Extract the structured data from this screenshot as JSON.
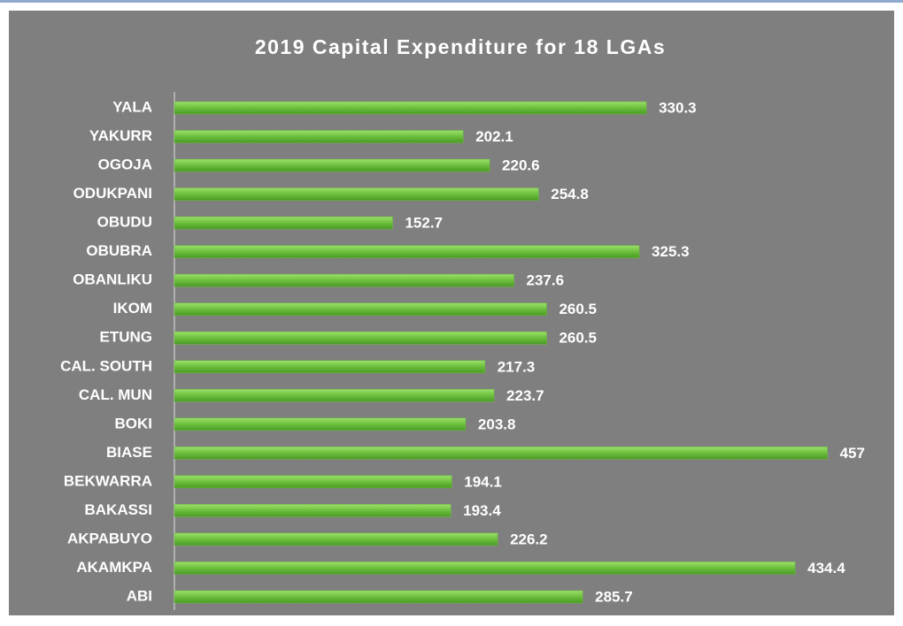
{
  "chart_data": {
    "type": "bar",
    "orientation": "horizontal",
    "title": "2019 Capital Expenditure for 18 LGAs",
    "categories": [
      "YALA",
      "YAKURR",
      "OGOJA",
      "ODUKPANI",
      "OBUDU",
      "OBUBRA",
      "OBANLIKU",
      "IKOM",
      "ETUNG",
      "CAL. SOUTH",
      "CAL. MUN",
      "BOKI",
      "BIASE",
      "BEKWARRA",
      "BAKASSI",
      "AKPABUYO",
      "AKAMKPA",
      "ABI"
    ],
    "values": [
      330.3,
      202.1,
      220.6,
      254.8,
      152.7,
      325.3,
      237.6,
      260.5,
      260.5,
      217.3,
      223.7,
      203.8,
      457,
      194.1,
      193.4,
      226.2,
      434.4,
      285.7
    ],
    "color": "#6cbf3c",
    "xlim": [
      0,
      500
    ]
  }
}
